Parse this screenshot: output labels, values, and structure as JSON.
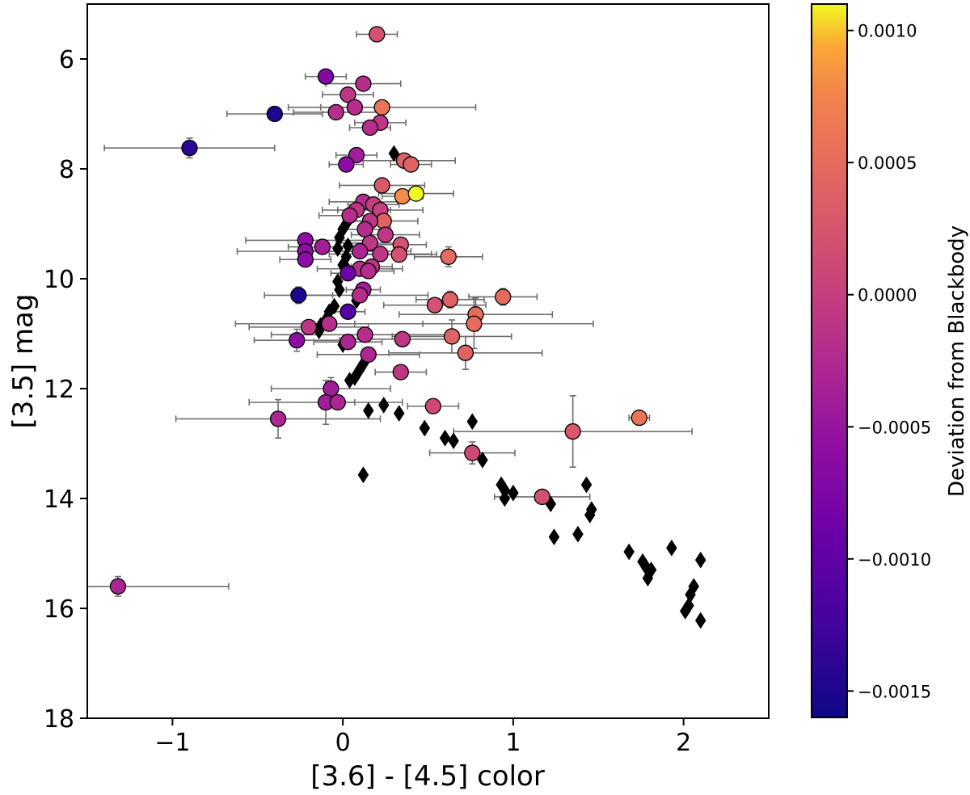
{
  "chart_data": {
    "type": "scatter",
    "xlabel": "[3.6] - [4.5] color",
    "ylabel": "[3.5] mag",
    "xlim": [
      -1.5,
      2.5
    ],
    "ylim": [
      18,
      5
    ],
    "y_inverted": true,
    "x_ticks": [
      -1,
      0,
      1,
      2
    ],
    "x_tick_labels": [
      "−1",
      "0",
      "1",
      "2"
    ],
    "y_ticks": [
      6,
      8,
      10,
      12,
      14,
      16,
      18
    ],
    "y_tick_labels": [
      "6",
      "8",
      "10",
      "12",
      "14",
      "16",
      "18"
    ],
    "colorbar": {
      "label": "Deviation from Blackbody",
      "min": -0.0016,
      "max": 0.0011,
      "ticks": [
        0.001,
        0.0005,
        0.0,
        -0.0005,
        -0.001,
        -0.0015
      ],
      "tick_labels": [
        "0.0010",
        "0.0005",
        "0.0000",
        "−0.0005",
        "−0.0010",
        "−0.0015"
      ],
      "colormap": "plasma"
    },
    "series": [
      {
        "name": "circles",
        "marker": "circle",
        "points": [
          {
            "x": 0.2,
            "y": 5.55,
            "c": 0.0002,
            "xerr": 0.12,
            "yerr": 0.06
          },
          {
            "x": -0.1,
            "y": 6.32,
            "c": -0.0007,
            "xerr": 0.12,
            "yerr": 0.06
          },
          {
            "x": 0.12,
            "y": 6.45,
            "c": -0.0002,
            "xerr": 0.22,
            "yerr": 0.06
          },
          {
            "x": 0.03,
            "y": 6.65,
            "c": -0.0001,
            "xerr": 0.15,
            "yerr": 0.06
          },
          {
            "x": 0.07,
            "y": 6.88,
            "c": -0.0002,
            "xerr": 0.2,
            "yerr": 0.06
          },
          {
            "x": 0.23,
            "y": 6.88,
            "c": 0.0006,
            "xerr": 0.55,
            "yerr": 0.06
          },
          {
            "x": -0.04,
            "y": 6.97,
            "c": -0.0002,
            "xerr": 0.25,
            "yerr": 0.06
          },
          {
            "x": -0.4,
            "y": 7.0,
            "c": -0.0015,
            "xerr": 0.28,
            "yerr": 0.06
          },
          {
            "x": 0.22,
            "y": 7.16,
            "c": -0.0001,
            "xerr": 0.15,
            "yerr": 0.06
          },
          {
            "x": 0.16,
            "y": 7.25,
            "c": -0.0002,
            "xerr": 0.12,
            "yerr": 0.06
          },
          {
            "x": -0.9,
            "y": 7.62,
            "c": -0.0014,
            "xerr": 0.5,
            "yerr": 0.18
          },
          {
            "x": 0.08,
            "y": 7.75,
            "c": -0.0004,
            "xerr": 0.12,
            "yerr": 0.06
          },
          {
            "x": 0.36,
            "y": 7.85,
            "c": 0.0004,
            "xerr": 0.3,
            "yerr": 0.06
          },
          {
            "x": 0.4,
            "y": 7.92,
            "c": 0.0004,
            "xerr": 0.12,
            "yerr": 0.06
          },
          {
            "x": 0.02,
            "y": 7.92,
            "c": -0.0006,
            "xerr": 0.1,
            "yerr": 0.06
          },
          {
            "x": 0.23,
            "y": 8.3,
            "c": 0.0003,
            "xerr": 0.25,
            "yerr": 0.08
          },
          {
            "x": 0.35,
            "y": 8.5,
            "c": 0.0008,
            "xerr": 0.12,
            "yerr": 0.08
          },
          {
            "x": 0.43,
            "y": 8.45,
            "c": 0.0011,
            "xerr": 0.22,
            "yerr": 0.08
          },
          {
            "x": 0.12,
            "y": 8.6,
            "c": -0.0002,
            "xerr": 0.2,
            "yerr": 0.06
          },
          {
            "x": 0.18,
            "y": 8.65,
            "c": 0.0,
            "xerr": 0.15,
            "yerr": 0.06
          },
          {
            "x": 0.08,
            "y": 8.75,
            "c": -0.0001,
            "xerr": 0.2,
            "yerr": 0.06
          },
          {
            "x": 0.22,
            "y": 8.75,
            "c": 0.0,
            "xerr": 0.25,
            "yerr": 0.06
          },
          {
            "x": 0.04,
            "y": 8.85,
            "c": -0.0002,
            "xerr": 0.18,
            "yerr": 0.06
          },
          {
            "x": 0.24,
            "y": 8.95,
            "c": 0.0004,
            "xerr": 0.2,
            "yerr": 0.08
          },
          {
            "x": 0.16,
            "y": 8.95,
            "c": -0.0001,
            "xerr": 0.12,
            "yerr": 0.06
          },
          {
            "x": 0.13,
            "y": 9.1,
            "c": -0.0002,
            "xerr": 0.15,
            "yerr": 0.06
          },
          {
            "x": 0.25,
            "y": 9.2,
            "c": -0.0001,
            "xerr": 0.2,
            "yerr": 0.06
          },
          {
            "x": -0.22,
            "y": 9.3,
            "c": -0.0006,
            "xerr": 0.35,
            "yerr": 0.06
          },
          {
            "x": 0.16,
            "y": 9.35,
            "c": -0.0001,
            "xerr": 0.2,
            "yerr": 0.06
          },
          {
            "x": 0.34,
            "y": 9.38,
            "c": 0.0002,
            "xerr": 0.15,
            "yerr": 0.06
          },
          {
            "x": -0.12,
            "y": 9.42,
            "c": -0.0004,
            "xerr": 0.2,
            "yerr": 0.06
          },
          {
            "x": -0.22,
            "y": 9.5,
            "c": -0.0006,
            "xerr": 0.4,
            "yerr": 0.06
          },
          {
            "x": 0.1,
            "y": 9.5,
            "c": -0.0003,
            "xerr": 0.3,
            "yerr": 0.06
          },
          {
            "x": 0.22,
            "y": 9.55,
            "c": -0.0001,
            "xerr": 0.3,
            "yerr": 0.06
          },
          {
            "x": 0.33,
            "y": 9.56,
            "c": 0.0002,
            "xerr": 0.22,
            "yerr": 0.06
          },
          {
            "x": 0.62,
            "y": 9.6,
            "c": 0.0005,
            "xerr": 0.2,
            "yerr": 0.18
          },
          {
            "x": -0.22,
            "y": 9.65,
            "c": -0.0006,
            "xerr": 0.15,
            "yerr": 0.06
          },
          {
            "x": 0.17,
            "y": 9.78,
            "c": -0.0001,
            "xerr": 0.12,
            "yerr": 0.06
          },
          {
            "x": 0.1,
            "y": 9.82,
            "c": -0.0002,
            "xerr": 0.25,
            "yerr": 0.06
          },
          {
            "x": 0.15,
            "y": 9.86,
            "c": -0.0002,
            "xerr": 0.15,
            "yerr": 0.06
          },
          {
            "x": 0.03,
            "y": 9.9,
            "c": -0.0009,
            "xerr": 0.1,
            "yerr": 0.06
          },
          {
            "x": 0.12,
            "y": 10.2,
            "c": -0.0004,
            "xerr": 0.1,
            "yerr": 0.06
          },
          {
            "x": 0.1,
            "y": 10.3,
            "c": -0.0002,
            "xerr": 0.4,
            "yerr": 0.06
          },
          {
            "x": -0.26,
            "y": 10.3,
            "c": -0.0015,
            "xerr": 0.2,
            "yerr": 0.15
          },
          {
            "x": 0.94,
            "y": 10.33,
            "c": 0.0005,
            "xerr": 0.2,
            "yerr": 0.15
          },
          {
            "x": 0.63,
            "y": 10.38,
            "c": 0.0004,
            "xerr": 0.2,
            "yerr": 0.15
          },
          {
            "x": 0.54,
            "y": 10.48,
            "c": 0.0002,
            "xerr": 0.3,
            "yerr": 0.06
          },
          {
            "x": 0.03,
            "y": 10.6,
            "c": -0.0011,
            "xerr": 0.1,
            "yerr": 0.06
          },
          {
            "x": 0.78,
            "y": 10.65,
            "c": 0.0005,
            "xerr": 0.45,
            "yerr": 0.3
          },
          {
            "x": 0.77,
            "y": 10.82,
            "c": 0.0005,
            "xerr": 0.7,
            "yerr": 0.45
          },
          {
            "x": -0.08,
            "y": 10.82,
            "c": -0.0002,
            "xerr": 0.55,
            "yerr": 0.06
          },
          {
            "x": -0.2,
            "y": 10.88,
            "c": -0.0001,
            "xerr": 0.35,
            "yerr": 0.06
          },
          {
            "x": 0.13,
            "y": 11.02,
            "c": -0.0002,
            "xerr": 0.55,
            "yerr": 0.06
          },
          {
            "x": 0.64,
            "y": 11.05,
            "c": 0.0004,
            "xerr": 0.35,
            "yerr": 0.3
          },
          {
            "x": 0.35,
            "y": 11.1,
            "c": -0.0001,
            "xerr": 0.3,
            "yerr": 0.06
          },
          {
            "x": -0.27,
            "y": 11.12,
            "c": -0.0006,
            "xerr": 0.25,
            "yerr": 0.2
          },
          {
            "x": 0.03,
            "y": 11.15,
            "c": -0.0003,
            "xerr": 0.2,
            "yerr": 0.06
          },
          {
            "x": 0.72,
            "y": 11.35,
            "c": 0.0004,
            "xerr": 0.45,
            "yerr": 0.3
          },
          {
            "x": 0.15,
            "y": 11.38,
            "c": -0.0003,
            "xerr": 0.3,
            "yerr": 0.06
          },
          {
            "x": 0.34,
            "y": 11.7,
            "c": -0.0001,
            "xerr": 0.15,
            "yerr": 0.06
          },
          {
            "x": -0.07,
            "y": 12.0,
            "c": -0.0004,
            "xerr": 0.35,
            "yerr": 0.2
          },
          {
            "x": -0.1,
            "y": 12.25,
            "c": -0.0004,
            "xerr": 0.45,
            "yerr": 0.4
          },
          {
            "x": -0.03,
            "y": 12.25,
            "c": -0.0003,
            "xerr": 0.1,
            "yerr": 0.06
          },
          {
            "x": 0.53,
            "y": 12.32,
            "c": 0.0001,
            "xerr": 0.15,
            "yerr": 0.06
          },
          {
            "x": -0.38,
            "y": 12.55,
            "c": -0.0003,
            "xerr": 0.6,
            "yerr": 0.35
          },
          {
            "x": 1.74,
            "y": 12.53,
            "c": 0.0006,
            "xerr": 0.06,
            "yerr": 0.06
          },
          {
            "x": 1.35,
            "y": 12.78,
            "c": 0.0003,
            "xerr": 0.7,
            "yerr": 0.65
          },
          {
            "x": 0.76,
            "y": 13.17,
            "c": 0.0001,
            "xerr": 0.25,
            "yerr": 0.2
          },
          {
            "x": 1.17,
            "y": 13.97,
            "c": 0.0002,
            "xerr": 0.28,
            "yerr": 0.08
          },
          {
            "x": -1.32,
            "y": 15.6,
            "c": -0.0003,
            "xerr": 0.65,
            "yerr": 0.18
          }
        ]
      },
      {
        "name": "diamonds",
        "marker": "diamond",
        "color": "#000000",
        "points": [
          {
            "x": 0.3,
            "y": 7.72
          },
          {
            "x": 0.05,
            "y": 8.85
          },
          {
            "x": 0.02,
            "y": 9.0
          },
          {
            "x": 0.0,
            "y": 9.1
          },
          {
            "x": -0.02,
            "y": 9.25
          },
          {
            "x": 0.03,
            "y": 9.4
          },
          {
            "x": -0.03,
            "y": 9.45
          },
          {
            "x": 0.02,
            "y": 9.6
          },
          {
            "x": 0.0,
            "y": 9.75
          },
          {
            "x": 0.03,
            "y": 9.85
          },
          {
            "x": -0.03,
            "y": 10.05
          },
          {
            "x": -0.02,
            "y": 10.2
          },
          {
            "x": 0.08,
            "y": 10.4
          },
          {
            "x": -0.05,
            "y": 10.5
          },
          {
            "x": -0.08,
            "y": 10.6
          },
          {
            "x": -0.1,
            "y": 10.75
          },
          {
            "x": -0.13,
            "y": 10.85
          },
          {
            "x": -0.14,
            "y": 10.95
          },
          {
            "x": 0.0,
            "y": 11.2
          },
          {
            "x": 0.15,
            "y": 11.4
          },
          {
            "x": 0.12,
            "y": 11.55
          },
          {
            "x": 0.1,
            "y": 11.65
          },
          {
            "x": 0.07,
            "y": 11.8
          },
          {
            "x": 0.04,
            "y": 11.85
          },
          {
            "x": 0.24,
            "y": 12.3
          },
          {
            "x": 0.15,
            "y": 12.4
          },
          {
            "x": 0.33,
            "y": 12.45
          },
          {
            "x": 0.48,
            "y": 12.72
          },
          {
            "x": 0.76,
            "y": 12.6
          },
          {
            "x": 0.6,
            "y": 12.9
          },
          {
            "x": 0.65,
            "y": 12.95
          },
          {
            "x": 0.82,
            "y": 13.3
          },
          {
            "x": 0.12,
            "y": 13.57
          },
          {
            "x": 0.93,
            "y": 13.75
          },
          {
            "x": 0.95,
            "y": 13.85
          },
          {
            "x": 1.0,
            "y": 13.9
          },
          {
            "x": 0.95,
            "y": 14.0
          },
          {
            "x": 1.43,
            "y": 13.75
          },
          {
            "x": 1.22,
            "y": 14.1
          },
          {
            "x": 1.46,
            "y": 14.2
          },
          {
            "x": 1.45,
            "y": 14.3
          },
          {
            "x": 1.24,
            "y": 14.7
          },
          {
            "x": 1.38,
            "y": 14.65
          },
          {
            "x": 1.68,
            "y": 14.97
          },
          {
            "x": 1.93,
            "y": 14.9
          },
          {
            "x": 2.1,
            "y": 15.12
          },
          {
            "x": 1.76,
            "y": 15.15
          },
          {
            "x": 1.78,
            "y": 15.25
          },
          {
            "x": 1.81,
            "y": 15.3
          },
          {
            "x": 1.79,
            "y": 15.45
          },
          {
            "x": 2.06,
            "y": 15.6
          },
          {
            "x": 2.04,
            "y": 15.75
          },
          {
            "x": 2.03,
            "y": 15.95
          },
          {
            "x": 2.01,
            "y": 16.05
          },
          {
            "x": 2.1,
            "y": 16.22
          }
        ]
      }
    ]
  }
}
